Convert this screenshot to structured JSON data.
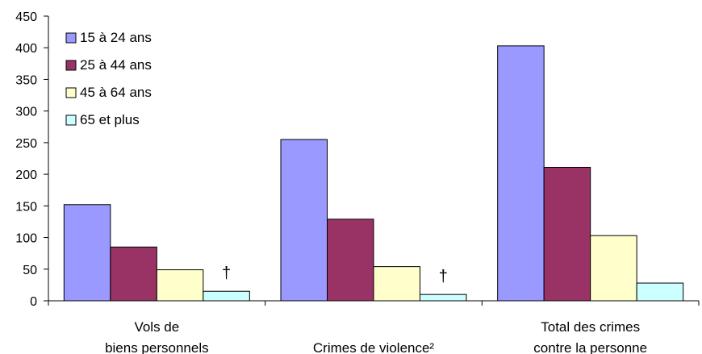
{
  "chart_data": {
    "type": "bar",
    "categories": [
      [
        "Vols de",
        "biens personnels"
      ],
      [
        "Crimes de violence²"
      ],
      [
        "Total des crimes",
        "contre la personne"
      ]
    ],
    "series": [
      {
        "name": "15 à 24 ans",
        "color": "#9999ff",
        "values": [
          152,
          255,
          403
        ]
      },
      {
        "name": "25 à 44 ans",
        "color": "#993366",
        "values": [
          85,
          129,
          211
        ]
      },
      {
        "name": "45 à 64 ans",
        "color": "#ffffcc",
        "values": [
          49,
          54,
          103
        ]
      },
      {
        "name": "65 et plus",
        "color": "#ccffff",
        "values": [
          15,
          10,
          28
        ]
      }
    ],
    "annotations": [
      {
        "category_index": 0,
        "series_index": 3,
        "text": "†"
      },
      {
        "category_index": 1,
        "series_index": 3,
        "text": "†"
      }
    ],
    "yticks": [
      "0",
      "50",
      "100",
      "150",
      "200",
      "250",
      "300",
      "350",
      "400",
      "450"
    ],
    "ylim": [
      0,
      450
    ],
    "grid": false,
    "legend_position": "top-left",
    "title": "",
    "xlabel": "",
    "ylabel": ""
  }
}
